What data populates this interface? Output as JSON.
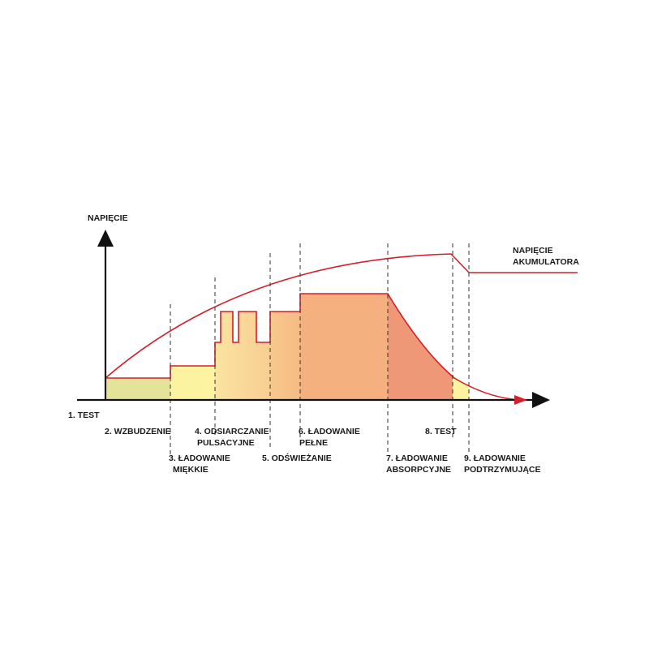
{
  "axis_label": "NAPIĘCIE",
  "curve_label": [
    "NAPIĘCIE",
    "AKUMULATORA"
  ],
  "stages": [
    {
      "id": "s1",
      "lines": [
        "1. TEST"
      ]
    },
    {
      "id": "s2",
      "lines": [
        "2. WZBUDZENIE"
      ]
    },
    {
      "id": "s3",
      "lines": [
        "3. ŁADOWANIE",
        "MIĘKKIE"
      ]
    },
    {
      "id": "s4",
      "lines": [
        "4. ODSIARCZANIE",
        "PULSACYJNE"
      ]
    },
    {
      "id": "s5",
      "lines": [
        "5. ODŚWIEŻANIE"
      ]
    },
    {
      "id": "s6",
      "lines": [
        "6. ŁADOWANIE",
        "PEŁNE"
      ]
    },
    {
      "id": "s7",
      "lines": [
        "7. ŁADOWANIE",
        "ABSORPCYJNE"
      ]
    },
    {
      "id": "s8",
      "lines": [
        "8. TEST"
      ]
    },
    {
      "id": "s9",
      "lines": [
        "9. ŁADOWANIE",
        "PODTRZYMUJĄCE"
      ]
    }
  ],
  "colors": {
    "soft_charge": "#e3e39a",
    "excitation": "#fbf3a0",
    "pulse": "#f9d79a",
    "refresh": "#f7c087",
    "full": "#f5b07f",
    "absorption": "#ef9878",
    "float": "#fbf3a0",
    "curve": "#d3202a",
    "axis": "#111111",
    "guides": "#333333"
  }
}
